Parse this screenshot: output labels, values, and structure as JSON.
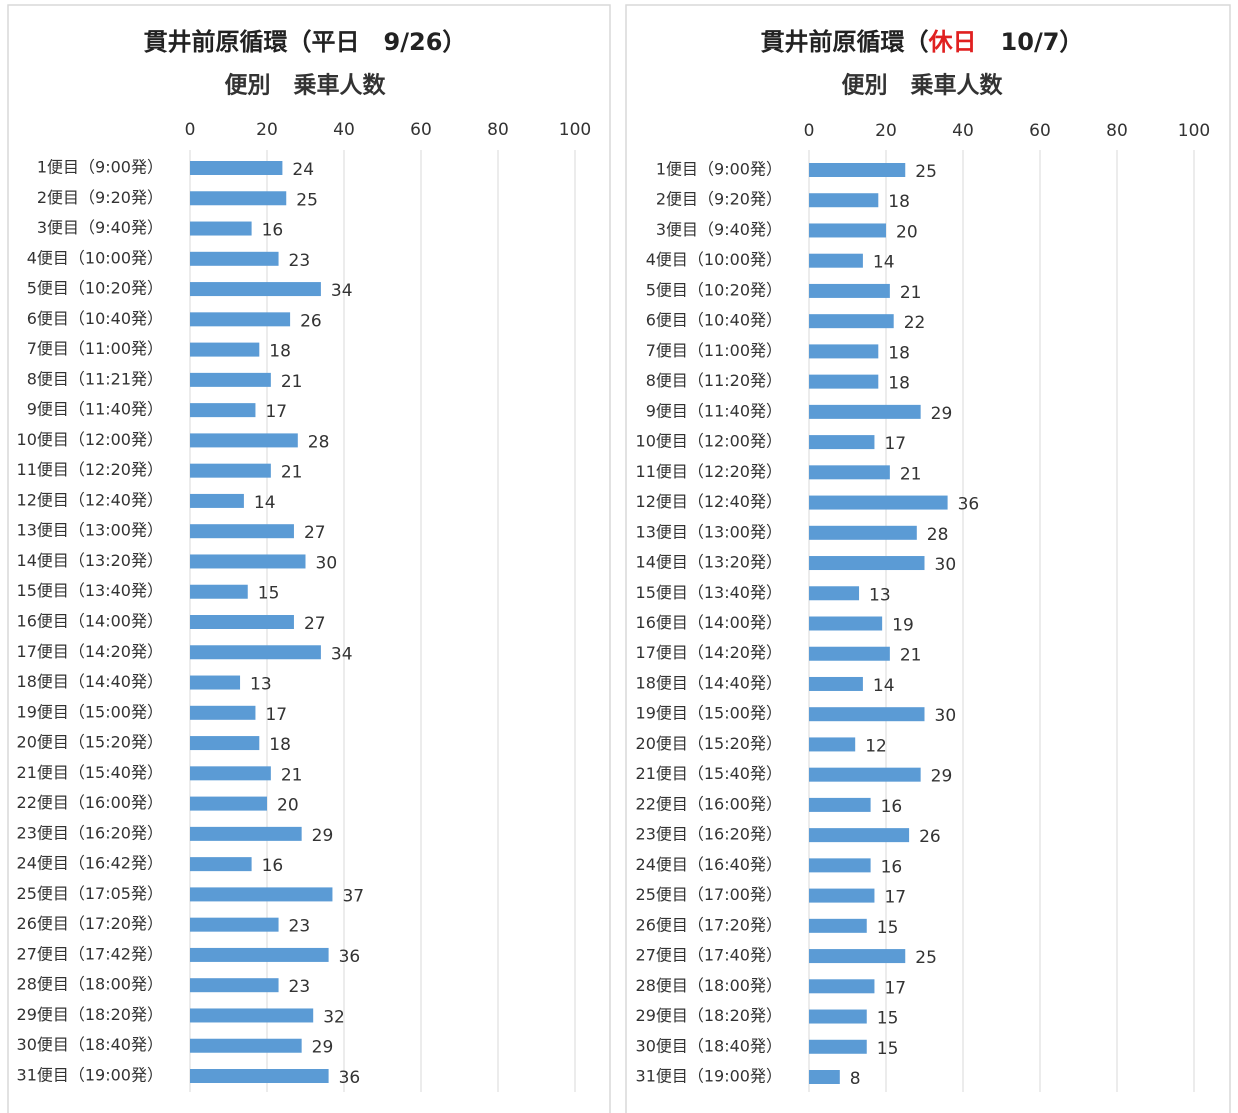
{
  "chart_data": [
    {
      "type": "bar",
      "title_segments": [
        {
          "text": "貫井前原循環（平日　9/26）",
          "color": "#222222"
        }
      ],
      "subtitle": "便別　乗車人数",
      "categories": [
        "1便目（9:00発）",
        "2便目（9:20発）",
        "3便目（9:40発）",
        "4便目（10:00発）",
        "5便目（10:20発）",
        "6便目（10:40発）",
        "7便目（11:00発）",
        "8便目（11:21発）",
        "9便目（11:40発）",
        "10便目（12:00発）",
        "11便目（12:20発）",
        "12便目（12:40発）",
        "13便目（13:00発）",
        "14便目（13:20発）",
        "15便目（13:40発）",
        "16便目（14:00発）",
        "17便目（14:20発）",
        "18便目（14:40発）",
        "19便目（15:00発）",
        "20便目（15:20発）",
        "21便目（15:40発）",
        "22便目（16:00発）",
        "23便目（16:20発）",
        "24便目（16:42発）",
        "25便目（17:05発）",
        "26便目（17:20発）",
        "27便目（17:42発）",
        "28便目（18:00発）",
        "29便目（18:20発）",
        "30便目（18:40発）",
        "31便目（19:00発）"
      ],
      "values": [
        24,
        25,
        16,
        23,
        34,
        26,
        18,
        21,
        17,
        28,
        21,
        14,
        27,
        30,
        15,
        27,
        34,
        13,
        17,
        18,
        21,
        20,
        29,
        16,
        37,
        23,
        36,
        23,
        32,
        29,
        36
      ],
      "color": "#5b9bd5",
      "xlim": [
        0,
        100
      ],
      "xticks": [
        0,
        20,
        40,
        60,
        80,
        100
      ],
      "grid": true
    },
    {
      "type": "bar",
      "title_segments": [
        {
          "text": "貫井前原循環（",
          "color": "#222222"
        },
        {
          "text": "休日",
          "color": "#e02020"
        },
        {
          "text": "　10/7）",
          "color": "#222222"
        }
      ],
      "subtitle": "便別　乗車人数",
      "categories": [
        "1便目（9:00発）",
        "2便目（9:20発）",
        "3便目（9:40発）",
        "4便目（10:00発）",
        "5便目（10:20発）",
        "6便目（10:40発）",
        "7便目（11:00発）",
        "8便目（11:20発）",
        "9便目（11:40発）",
        "10便目（12:00発）",
        "11便目（12:20発）",
        "12便目（12:40発）",
        "13便目（13:00発）",
        "14便目（13:20発）",
        "15便目（13:40発）",
        "16便目（14:00発）",
        "17便目（14:20発）",
        "18便目（14:40発）",
        "19便目（15:00発）",
        "20便目（15:20発）",
        "21便目（15:40発）",
        "22便目（16:00発）",
        "23便目（16:20発）",
        "24便目（16:40発）",
        "25便目（17:00発）",
        "26便目（17:20発）",
        "27便目（17:40発）",
        "28便目（18:00発）",
        "29便目（18:20発）",
        "30便目（18:40発）",
        "31便目（19:00発）"
      ],
      "values": [
        25,
        18,
        20,
        14,
        21,
        22,
        18,
        18,
        29,
        17,
        21,
        36,
        28,
        30,
        13,
        19,
        21,
        14,
        30,
        12,
        29,
        16,
        26,
        16,
        17,
        15,
        25,
        17,
        15,
        15,
        8
      ],
      "color": "#5b9bd5",
      "xlim": [
        0,
        100
      ],
      "xticks": [
        0,
        20,
        40,
        60,
        80,
        100
      ],
      "grid": true
    }
  ]
}
